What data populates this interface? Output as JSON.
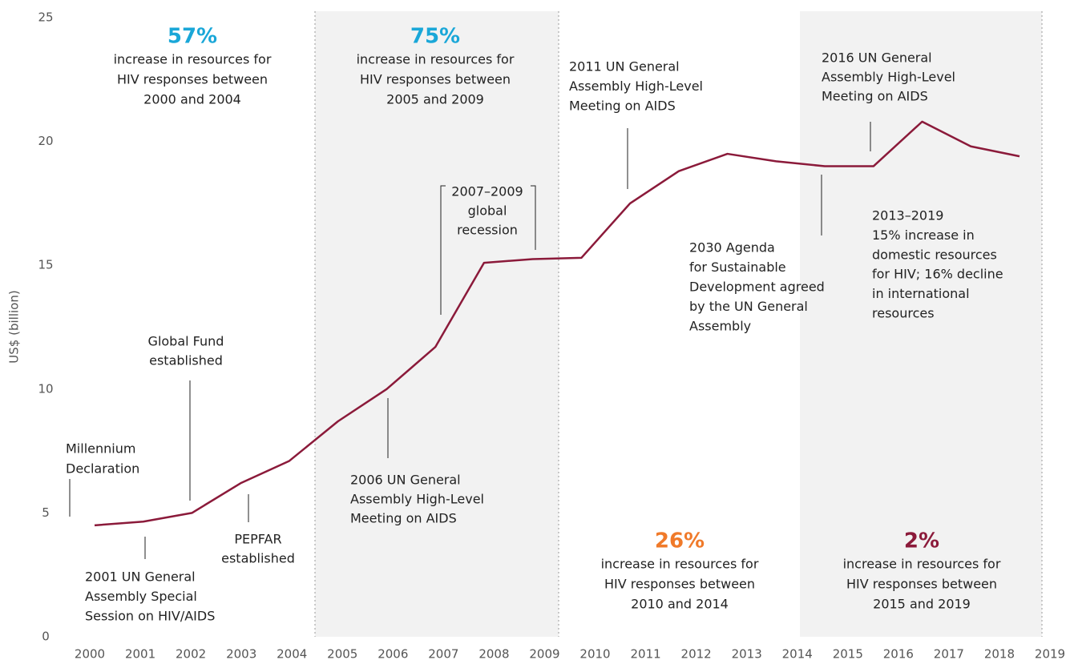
{
  "chart_data": {
    "type": "line",
    "y_label": "US$ (billion)",
    "categories": [
      "2000",
      "2001",
      "2002",
      "2003",
      "2004",
      "2005",
      "2006",
      "2007",
      "2008",
      "2009",
      "2010",
      "2011",
      "2012",
      "2013",
      "2014",
      "2015",
      "2016",
      "2017",
      "2018",
      "2019"
    ],
    "series": [
      {
        "color": "#8b1a3a",
        "values": [
          4.5,
          4.65,
          5.0,
          6.2,
          7.1,
          8.7,
          10.0,
          11.7,
          15.1,
          15.25,
          15.3,
          17.5,
          18.8,
          19.5,
          19.2,
          19.0,
          19.0,
          20.8,
          19.8,
          19.4
        ]
      }
    ],
    "ylim": [
      0,
      25
    ],
    "yticks": [
      0,
      5,
      10,
      15,
      20,
      25
    ],
    "grid": false,
    "highlights": [
      {
        "value": "57%",
        "color": "#1aa7d8",
        "lines": [
          "increase in resources for",
          "HIV responses between",
          "2000 and 2004"
        ]
      },
      {
        "value": "75%",
        "color": "#1aa7d8",
        "lines": [
          "increase in resources for",
          "HIV responses between",
          "2005 and 2009"
        ]
      },
      {
        "value": "26%",
        "color": "#f07a2a",
        "lines": [
          "increase in resources for",
          "HIV responses between",
          "2010 and 2014"
        ]
      },
      {
        "value": "2%",
        "color": "#8b1a3a",
        "lines": [
          "increase in resources for",
          "HIV responses between",
          "2015 and 2019"
        ]
      }
    ],
    "annotations": [
      {
        "lines": [
          "Millennium",
          "Declaration"
        ]
      },
      {
        "lines": [
          "Global Fund",
          "established"
        ]
      },
      {
        "lines": [
          "2001 UN General",
          "Assembly Special",
          "Session on HIV/AIDS"
        ]
      },
      {
        "lines": [
          "PEPFAR",
          "established"
        ]
      },
      {
        "lines": [
          "2006 UN General",
          "Assembly High-Level",
          "Meeting on AIDS"
        ]
      },
      {
        "lines": [
          "2007–2009",
          "global",
          "recession"
        ]
      },
      {
        "lines": [
          "2011 UN General",
          "Assembly High-Level",
          "Meeting on AIDS"
        ]
      },
      {
        "lines": [
          "2030 Agenda",
          "for Sustainable",
          "Development agreed",
          "by the UN General",
          "Assembly"
        ]
      },
      {
        "lines": [
          "2016 UN General",
          "Assembly High-Level",
          "Meeting on AIDS"
        ]
      },
      {
        "lines": [
          "2013–2019",
          "15% increase in",
          "domestic resources",
          "for HIV; 16% decline",
          "in international",
          "resources"
        ]
      }
    ]
  }
}
